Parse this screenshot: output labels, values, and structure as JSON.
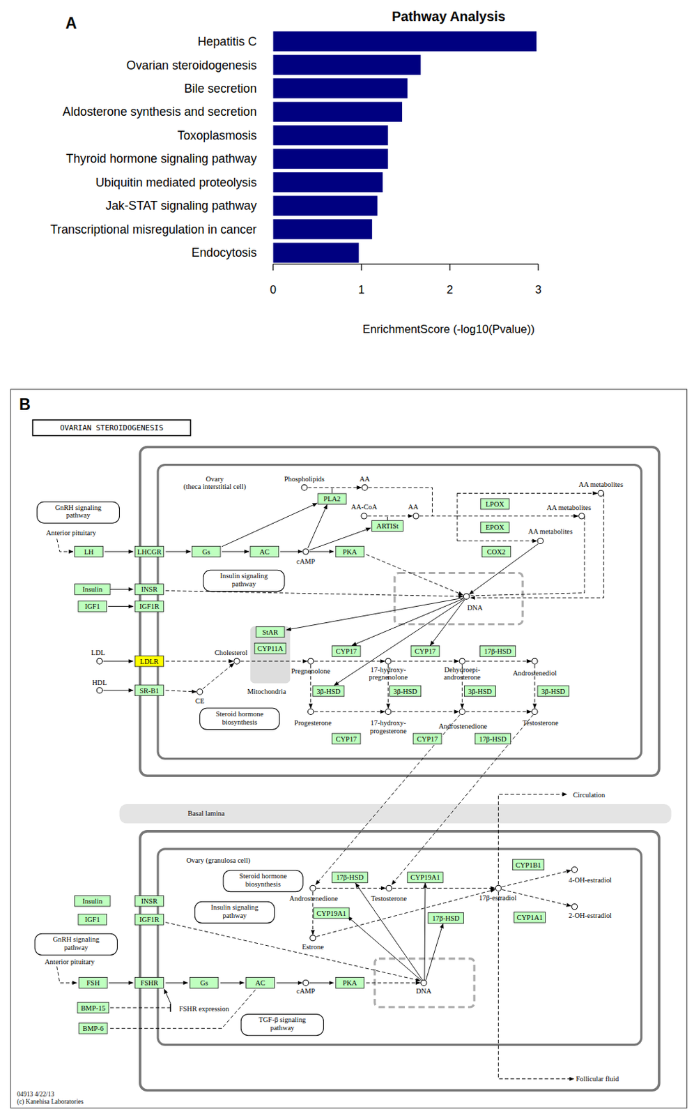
{
  "panel_labels": [
    "A",
    "B"
  ],
  "chart_data": {
    "type": "bar",
    "orientation": "horizontal",
    "title": "Pathway Analysis",
    "categories": [
      "Hepatitis C",
      "Ovarian steroidogenesis",
      "Bile secretion",
      "Aldosterone synthesis and secretion",
      "Toxoplasmosis",
      "Thyroid hormone signaling pathway",
      "Ubiquitin mediated proteolysis",
      "Jak-STAT signaling pathway",
      "Transcriptional misregulation in cancer",
      "Endocytosis"
    ],
    "values": [
      2.98,
      1.67,
      1.52,
      1.46,
      1.3,
      1.3,
      1.24,
      1.18,
      1.12,
      0.97
    ],
    "color": "#000080",
    "xlim": [
      0,
      3
    ],
    "xticks": [
      0,
      1,
      2,
      3
    ],
    "xlabel": "EnrichmentScore (-log10(Pvalue))"
  },
  "diagram": {
    "title": "OVARIAN STEROIDOGENESIS",
    "gene_color": "#bfffbf",
    "genes": [
      {
        "label": "LH"
      },
      {
        "label": "LHCGR"
      },
      {
        "label": "Gs"
      },
      {
        "label": "AC"
      },
      {
        "label": "PKA"
      },
      {
        "label": "PLA2"
      },
      {
        "label": "ARTISt"
      },
      {
        "label": "LPOX"
      },
      {
        "label": "EPOX"
      },
      {
        "label": "COX2"
      },
      {
        "label": "Insulin"
      },
      {
        "label": "INSR"
      },
      {
        "label": "IGF1"
      },
      {
        "label": "IGF1R"
      },
      {
        "label": "LDLR",
        "color": "#ffff00"
      },
      {
        "label": "SR-B1"
      },
      {
        "label": "StAR"
      },
      {
        "label": "CYP11A"
      },
      {
        "label": "CYP17"
      },
      {
        "label": "CYP17"
      },
      {
        "label": "17β-HSD"
      },
      {
        "label": "3β-HSD"
      },
      {
        "label": "3β-HSD"
      },
      {
        "label": "3β-HSD"
      },
      {
        "label": "3β-HSD"
      },
      {
        "label": "CYP17"
      },
      {
        "label": "CYP17"
      },
      {
        "label": "17β-HSD"
      },
      {
        "label": "Insulin"
      },
      {
        "label": "INSR"
      },
      {
        "label": "IGF1"
      },
      {
        "label": "IGF1R"
      },
      {
        "label": "FSH"
      },
      {
        "label": "FSHR"
      },
      {
        "label": "Gs"
      },
      {
        "label": "AC"
      },
      {
        "label": "PKA"
      },
      {
        "label": "BMP-15"
      },
      {
        "label": "BMP-6"
      },
      {
        "label": "17β-HSD"
      },
      {
        "label": "CYP19A1"
      },
      {
        "label": "CYP19A1"
      },
      {
        "label": "17β-HSD"
      },
      {
        "label": "CYP1B1"
      },
      {
        "label": "CYP1A1"
      }
    ],
    "pathways": [
      [
        "GnRH signaling",
        "pathway"
      ],
      [
        "Insulin signaling",
        "pathway"
      ],
      [
        "Steroid hormone",
        "biosynthesis"
      ],
      [
        "Steroid hormone",
        "biosynthesis"
      ],
      [
        "Insulin signaling",
        "pathway"
      ],
      [
        "GnRH signaling",
        "pathway"
      ],
      [
        "TGF-β signaling",
        "pathway"
      ]
    ],
    "compounds": [
      [
        "Phospholipids"
      ],
      [
        "AA"
      ],
      [
        "AA-CoA"
      ],
      [
        "AA"
      ],
      [
        "AA metabolites"
      ],
      [
        "AA metabolites"
      ],
      [
        "AA metabolites"
      ],
      [
        "cAMP"
      ],
      [
        "DNA"
      ],
      [
        "LDL"
      ],
      [
        "HDL"
      ],
      [
        "Cholesterol"
      ],
      [
        "CE"
      ],
      [
        "Pregnenolone"
      ],
      [
        "17-hydroxy-",
        "pregnenolone"
      ],
      [
        "Dehydroepi-",
        "androsterone"
      ],
      [
        "Androstenediol"
      ],
      [
        "Progesterone"
      ],
      [
        "17-hydroxy-",
        "progesterone"
      ],
      [
        "Androstenedione"
      ],
      [
        "Testosterone"
      ],
      [
        "Androstenedione"
      ],
      [
        "Testosterone"
      ],
      [
        "17β-estradiol"
      ],
      [
        "Estrone"
      ],
      [
        "4-OH-estradiol"
      ],
      [
        "2-OH-estradiol"
      ],
      [
        "cAMP"
      ],
      [
        "DNA"
      ]
    ],
    "regions": [
      [
        "Ovary",
        "(theca interstitial cell)"
      ],
      [
        "Ovary (granulosa cell)"
      ]
    ],
    "notes": [
      "Anterior pituitary",
      "Mitochondria",
      "Anterior pituitary",
      "FSHR expression",
      "Basal lamina",
      "Circulation",
      "Follicular fluid"
    ],
    "footer": [
      "04913 4/22/13",
      "(c) Kanehisa Laboratories"
    ]
  }
}
